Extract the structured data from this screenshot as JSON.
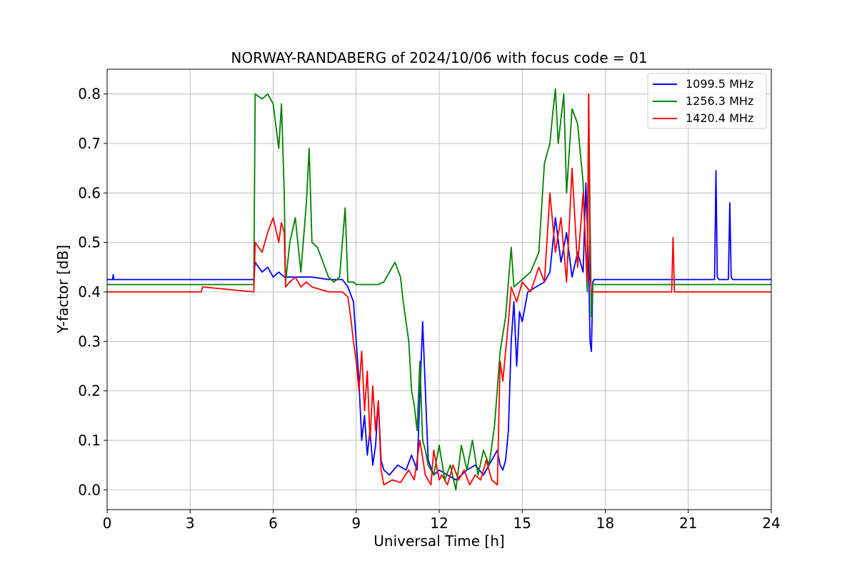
{
  "chart_data": {
    "type": "line",
    "title": "NORWAY-RANDABERG of 2024/10/06 with focus code = 01",
    "xlabel": "Universal Time [h]",
    "ylabel": "Y-factor [dB]",
    "xlim": [
      0,
      24
    ],
    "ylim": [
      -0.04,
      0.85
    ],
    "xticks": [
      0,
      3,
      6,
      9,
      12,
      15,
      18,
      21,
      24
    ],
    "xtick_labels": [
      "0",
      "3",
      "6",
      "9",
      "12",
      "15",
      "18",
      "21",
      "24"
    ],
    "yticks": [
      0.0,
      0.1,
      0.2,
      0.3,
      0.4,
      0.5,
      0.6,
      0.7,
      0.8
    ],
    "ytick_labels": [
      "0.0",
      "0.1",
      "0.2",
      "0.3",
      "0.4",
      "0.5",
      "0.6",
      "0.7",
      "0.8"
    ],
    "grid": true,
    "legend_position": "top-right",
    "series": [
      {
        "name": "1099.5 MHz",
        "color": "#0000ff",
        "x": [
          0,
          0.2,
          0.22,
          0.24,
          2.0,
          5.3,
          5.35,
          5.6,
          5.8,
          6.0,
          6.2,
          6.4,
          6.6,
          7.0,
          7.4,
          8.0,
          8.5,
          8.7,
          8.9,
          9.0,
          9.1,
          9.2,
          9.3,
          9.4,
          9.5,
          9.6,
          9.7,
          9.8,
          9.9,
          10.0,
          10.2,
          10.5,
          10.8,
          11.0,
          11.2,
          11.4,
          11.6,
          11.8,
          12.0,
          12.3,
          12.6,
          13.0,
          13.3,
          13.6,
          13.9,
          14.1,
          14.2,
          14.3,
          14.4,
          14.5,
          14.6,
          14.7,
          14.8,
          14.9,
          15.0,
          15.2,
          15.5,
          15.8,
          16.0,
          16.2,
          16.4,
          16.6,
          16.8,
          17.0,
          17.2,
          17.3,
          17.4,
          17.45,
          17.5,
          17.55,
          17.6,
          18.0,
          19.0,
          20.0,
          21.0,
          21.95,
          22.0,
          22.05,
          22.1,
          22.45,
          22.5,
          22.55,
          22.6,
          23.0,
          24.0
        ],
        "y": [
          0.425,
          0.425,
          0.435,
          0.425,
          0.425,
          0.425,
          0.46,
          0.44,
          0.45,
          0.43,
          0.44,
          0.43,
          0.43,
          0.43,
          0.43,
          0.425,
          0.425,
          0.41,
          0.38,
          0.3,
          0.22,
          0.1,
          0.15,
          0.07,
          0.12,
          0.05,
          0.09,
          0.18,
          0.06,
          0.04,
          0.03,
          0.05,
          0.04,
          0.07,
          0.04,
          0.34,
          0.06,
          0.03,
          0.04,
          0.03,
          0.02,
          0.04,
          0.05,
          0.03,
          0.06,
          0.08,
          0.05,
          0.04,
          0.06,
          0.12,
          0.3,
          0.38,
          0.25,
          0.36,
          0.34,
          0.4,
          0.41,
          0.42,
          0.44,
          0.55,
          0.46,
          0.52,
          0.43,
          0.48,
          0.44,
          0.62,
          0.45,
          0.3,
          0.28,
          0.42,
          0.425,
          0.425,
          0.425,
          0.425,
          0.425,
          0.425,
          0.645,
          0.43,
          0.425,
          0.425,
          0.58,
          0.43,
          0.425,
          0.425,
          0.425
        ]
      },
      {
        "name": "1256.3 MHz",
        "color": "#008000",
        "x": [
          0,
          2.0,
          5.3,
          5.35,
          5.6,
          5.8,
          6.0,
          6.2,
          6.3,
          6.4,
          6.45,
          6.6,
          6.8,
          7.0,
          7.2,
          7.3,
          7.4,
          7.6,
          7.8,
          8.0,
          8.2,
          8.4,
          8.6,
          8.7,
          8.9,
          9.0,
          9.4,
          9.8,
          10.0,
          10.2,
          10.4,
          10.6,
          10.7,
          10.8,
          10.9,
          11.0,
          11.1,
          11.2,
          11.3,
          11.4,
          11.5,
          11.6,
          11.8,
          12.0,
          12.2,
          12.4,
          12.6,
          12.8,
          13.0,
          13.2,
          13.4,
          13.6,
          13.8,
          14.0,
          14.2,
          14.4,
          14.5,
          14.6,
          14.7,
          14.9,
          15.1,
          15.3,
          15.6,
          15.8,
          16.0,
          16.1,
          16.2,
          16.3,
          16.5,
          16.6,
          16.8,
          17.0,
          17.2,
          17.35,
          17.4,
          17.45,
          17.5,
          17.55,
          17.6,
          18.0,
          20.0,
          22.0,
          24.0
        ],
        "y": [
          0.415,
          0.415,
          0.415,
          0.8,
          0.79,
          0.8,
          0.78,
          0.69,
          0.78,
          0.6,
          0.42,
          0.5,
          0.55,
          0.44,
          0.58,
          0.69,
          0.5,
          0.49,
          0.46,
          0.43,
          0.42,
          0.43,
          0.57,
          0.42,
          0.42,
          0.415,
          0.415,
          0.415,
          0.42,
          0.44,
          0.46,
          0.43,
          0.38,
          0.34,
          0.3,
          0.2,
          0.17,
          0.12,
          0.26,
          0.1,
          0.08,
          0.05,
          0.03,
          0.09,
          0.02,
          0.05,
          0.0,
          0.09,
          0.04,
          0.1,
          0.03,
          0.08,
          0.05,
          0.13,
          0.28,
          0.35,
          0.42,
          0.49,
          0.41,
          0.42,
          0.43,
          0.44,
          0.48,
          0.66,
          0.7,
          0.76,
          0.81,
          0.7,
          0.8,
          0.6,
          0.77,
          0.74,
          0.62,
          0.4,
          0.8,
          0.55,
          0.35,
          0.415,
          0.415,
          0.415,
          0.415,
          0.415,
          0.415
        ]
      },
      {
        "name": "1420.4 MHz",
        "color": "#ff0000",
        "x": [
          0,
          2.0,
          3.4,
          3.45,
          5.3,
          5.35,
          5.6,
          5.8,
          6.0,
          6.2,
          6.3,
          6.4,
          6.45,
          6.6,
          6.8,
          7.0,
          7.2,
          7.4,
          8.0,
          8.5,
          8.7,
          8.8,
          8.9,
          9.0,
          9.1,
          9.2,
          9.3,
          9.4,
          9.5,
          9.6,
          9.7,
          9.8,
          9.9,
          10.0,
          10.3,
          10.6,
          10.9,
          11.1,
          11.3,
          11.5,
          11.7,
          11.8,
          12.0,
          12.1,
          12.3,
          12.5,
          12.7,
          12.9,
          13.1,
          13.3,
          13.5,
          13.7,
          13.9,
          14.1,
          14.2,
          14.3,
          14.4,
          14.5,
          14.6,
          14.8,
          15.0,
          15.3,
          15.6,
          15.8,
          16.0,
          16.2,
          16.4,
          16.6,
          16.8,
          17.0,
          17.2,
          17.35,
          17.4,
          17.45,
          17.5,
          18.0,
          19.0,
          20.0,
          20.4,
          20.45,
          20.5,
          22.0,
          24.0
        ],
        "y": [
          0.4,
          0.4,
          0.4,
          0.41,
          0.4,
          0.5,
          0.48,
          0.52,
          0.55,
          0.5,
          0.54,
          0.52,
          0.41,
          0.42,
          0.43,
          0.41,
          0.42,
          0.41,
          0.4,
          0.4,
          0.39,
          0.35,
          0.3,
          0.26,
          0.2,
          0.28,
          0.16,
          0.24,
          0.1,
          0.21,
          0.12,
          0.18,
          0.04,
          0.01,
          0.02,
          0.015,
          0.04,
          0.02,
          0.1,
          0.03,
          0.01,
          0.08,
          0.02,
          0.03,
          0.01,
          0.05,
          0.02,
          0.04,
          0.01,
          0.03,
          0.02,
          0.06,
          0.02,
          0.01,
          0.26,
          0.22,
          0.28,
          0.34,
          0.41,
          0.38,
          0.42,
          0.4,
          0.45,
          0.42,
          0.6,
          0.48,
          0.55,
          0.42,
          0.65,
          0.45,
          0.6,
          0.42,
          0.8,
          0.43,
          0.4,
          0.4,
          0.4,
          0.4,
          0.4,
          0.51,
          0.4,
          0.4,
          0.4
        ]
      }
    ]
  }
}
